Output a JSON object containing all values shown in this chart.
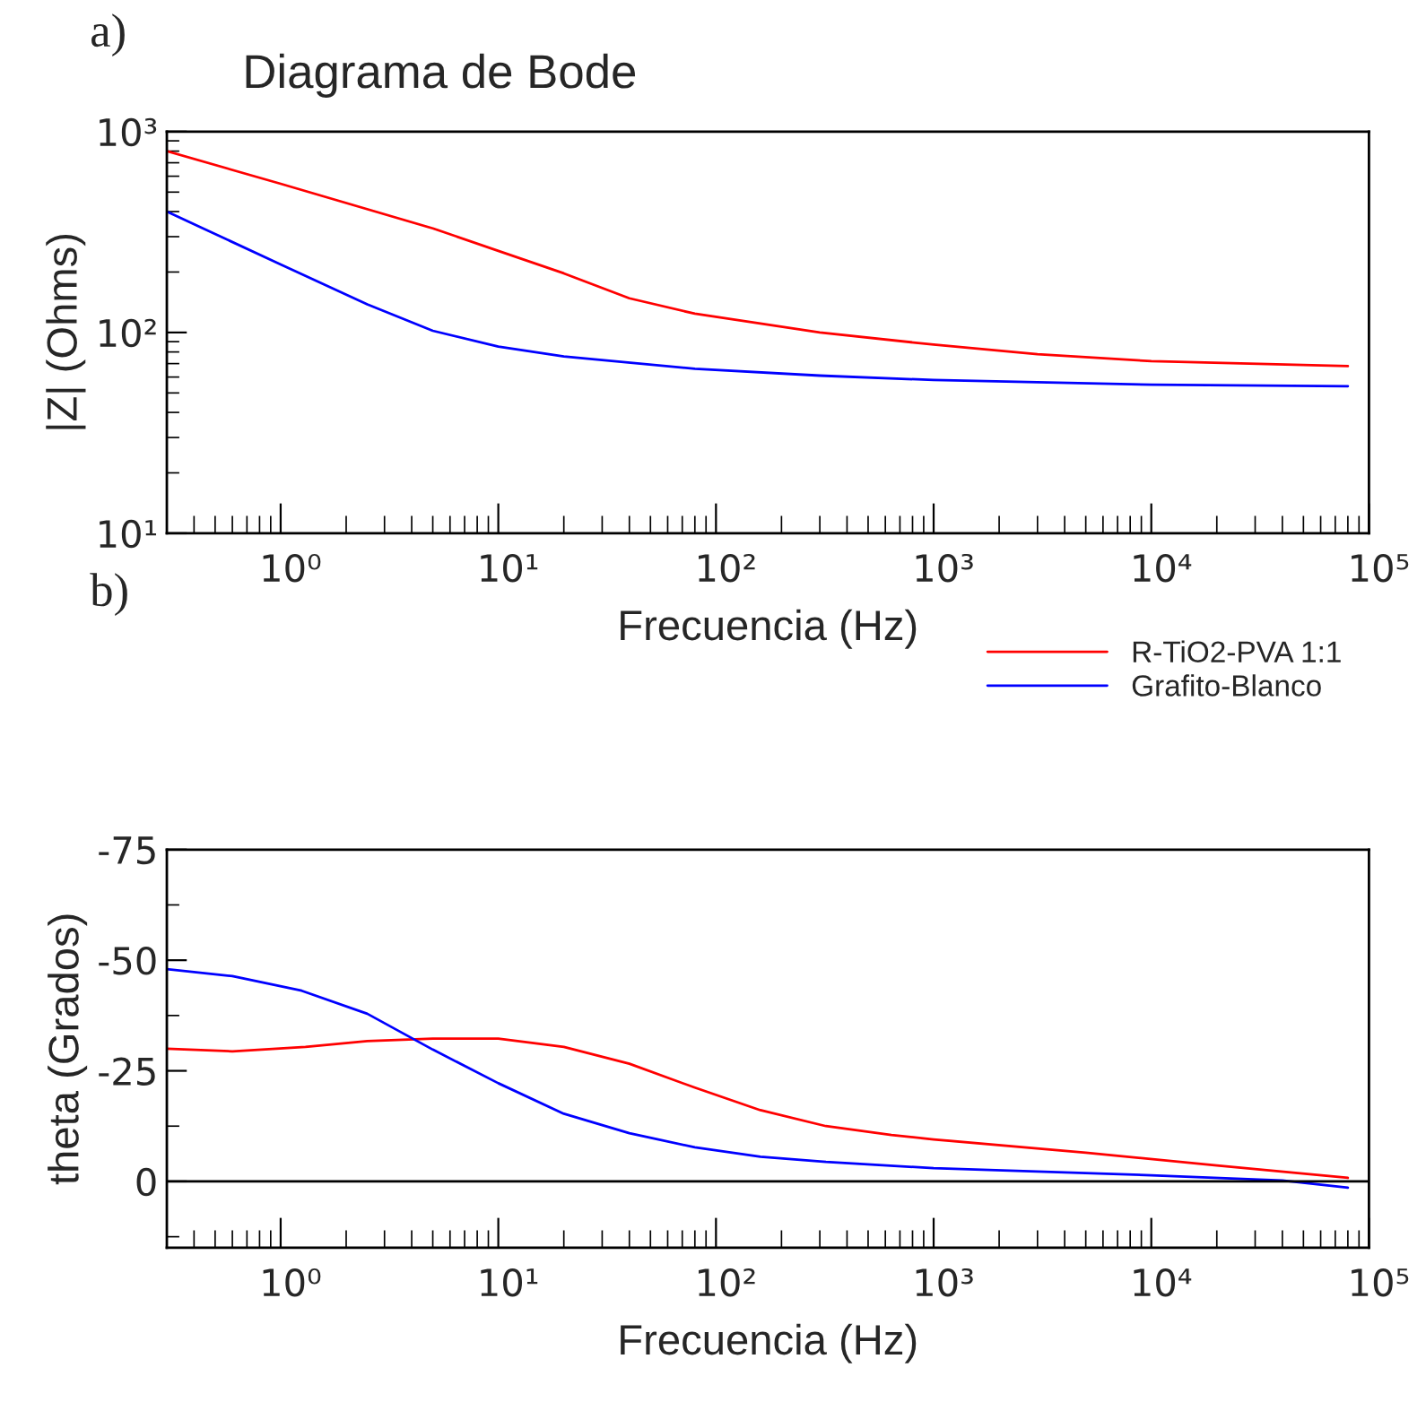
{
  "chart_data": [
    {
      "type": "line",
      "title": "Diagrama de Bode",
      "xlabel": "Frecuencia (Hz)",
      "ylabel": "|Z| (Ohms)",
      "log": "xy",
      "annotations": [
        "a)"
      ],
      "legend": "bottom right",
      "grid": false,
      "xlim": [
        0.3,
        100000
      ],
      "xticks": [
        {
          "value": 1,
          "label": "10⁰"
        },
        {
          "value": 10,
          "label": "10¹"
        },
        {
          "value": 100,
          "label": "10²"
        },
        {
          "value": 1000,
          "label": "10³"
        },
        {
          "value": 10000,
          "label": "10⁴"
        },
        {
          "value": 100000,
          "label": "10⁵"
        }
      ],
      "ylim": [
        10,
        1000
      ],
      "yticks": [
        {
          "value": 10,
          "label": "10¹"
        },
        {
          "value": 100,
          "label": "10²"
        },
        {
          "value": 1000,
          "label": "10³"
        }
      ],
      "series": [
        {
          "name": "R-TiO2-PVA 1:1",
          "color": "#ff0000",
          "x": [
            0.3,
            1,
            5,
            10,
            20,
            40,
            80,
            300,
            1000,
            3000,
            10000,
            80000
          ],
          "values": [
            800,
            550,
            330,
            255,
            197,
            148,
            124,
            100,
            87,
            78,
            72,
            68
          ]
        },
        {
          "name": "Grafito-Blanco",
          "color": "#0000ff",
          "x": [
            0.3,
            1,
            2.5,
            5,
            10,
            20,
            80,
            300,
            1000,
            10000,
            80000
          ],
          "values": [
            400,
            218,
            138,
            102,
            85,
            76,
            66,
            61,
            58,
            55,
            54
          ]
        }
      ]
    },
    {
      "type": "line",
      "xlabel": "Frecuencia (Hz)",
      "ylabel": "theta (Grados)",
      "log": "x",
      "annotations": [
        "b)"
      ],
      "grid": false,
      "xlim": [
        0.3,
        100000
      ],
      "xticks": [
        {
          "value": 1,
          "label": "10⁰"
        },
        {
          "value": 10,
          "label": "10¹"
        },
        {
          "value": 100,
          "label": "10²"
        },
        {
          "value": 1000,
          "label": "10³"
        },
        {
          "value": 10000,
          "label": "10⁴"
        },
        {
          "value": 100000,
          "label": "10⁵"
        }
      ],
      "ylim": [
        15,
        -75
      ],
      "yticks": [
        -75,
        -50,
        -25,
        0
      ],
      "ref_lines": [
        {
          "axis": "y",
          "value": 0,
          "color": "#000000"
        }
      ],
      "series": [
        {
          "color": "#ff0000",
          "x": [
            0.3,
            0.6,
            1.3,
            2.5,
            5,
            10,
            20,
            40,
            80,
            160,
            320,
            640,
            1000,
            5000,
            20000,
            80000
          ],
          "values": [
            -30,
            -29.4,
            -30.4,
            -31.7,
            -32.3,
            -32.3,
            -30.4,
            -26.6,
            -21.2,
            -16.1,
            -12.5,
            -10.5,
            -9.5,
            -6.5,
            -3.6,
            -0.8
          ]
        },
        {
          "color": "#0000ff",
          "x": [
            0.3,
            0.6,
            1.25,
            2.5,
            5,
            10,
            20,
            40,
            80,
            160,
            320,
            1000,
            10000,
            40000,
            80000
          ],
          "values": [
            -48,
            -46.4,
            -43.1,
            -37.9,
            -29.8,
            -22.2,
            -15.3,
            -10.9,
            -7.7,
            -5.6,
            -4.4,
            -3,
            -1.4,
            -0.2,
            1.4
          ]
        }
      ]
    }
  ]
}
